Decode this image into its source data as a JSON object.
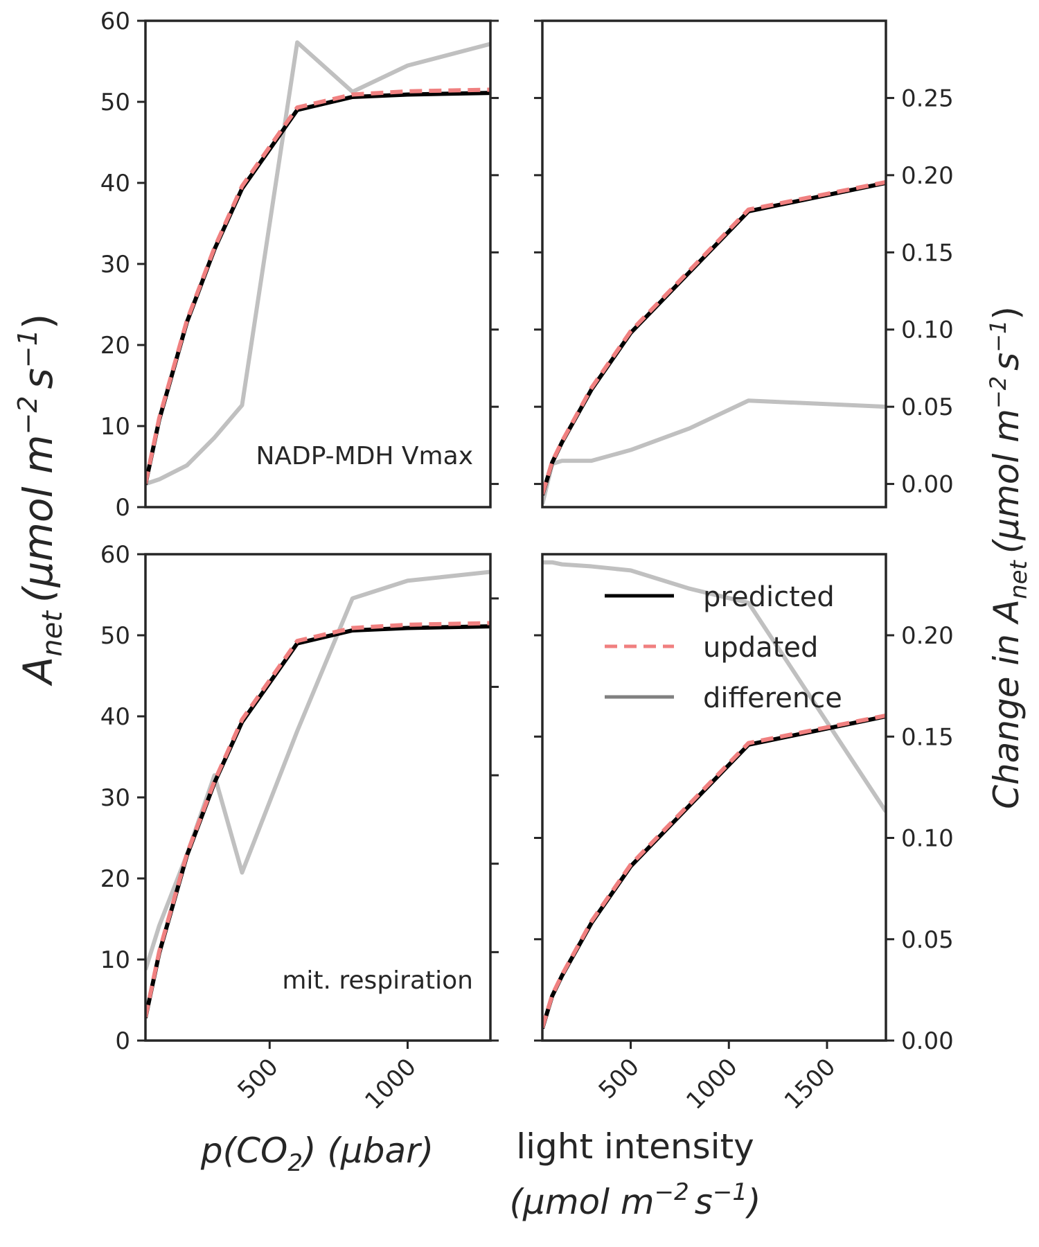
{
  "colors": {
    "predicted": "#000000",
    "updated": "#f08080",
    "difference": "#c0c0c0",
    "axis": "#262626"
  },
  "labels": {
    "y_left_main": "A",
    "y_left_sub": "net",
    "y_left_units": "(μmol m",
    "y_left_exp1": "−2",
    "y_left_mid": "s",
    "y_left_exp2": "−1",
    "y_left_close": ")",
    "y_right_main": "Change in A",
    "y_right_sub": "net",
    "y_right_units": "(μmol m",
    "y_right_exp1": "−2",
    "y_right_mid": "s",
    "y_right_exp2": "−1",
    "y_right_close": ")",
    "x_left_a": "p(CO",
    "x_left_sub": "2",
    "x_left_b": ") (μbar)",
    "x_right_line1": "light intensity",
    "x_right_line2_a": "(μmol m",
    "x_right_exp1": "−2",
    "x_right_mid": "s",
    "x_right_exp2": "−1",
    "x_right_close": ")"
  },
  "legend": {
    "items": [
      "predicted",
      "updated",
      "difference"
    ],
    "placement": "upper-center of bottom-right panel"
  },
  "chart_data": [
    {
      "id": "top-left",
      "type": "line",
      "annotation": "NADP-MDH Vmax",
      "xlabel": "p(CO2) (μbar)",
      "ylabel": "Anet (μmol m−2 s−1)",
      "xlim": [
        50,
        1300
      ],
      "ylim": [
        0,
        60
      ],
      "yticks": [
        0,
        10,
        20,
        30,
        40,
        50,
        60
      ],
      "x": [
        50,
        100,
        200,
        300,
        400,
        600,
        800,
        1000,
        1300
      ],
      "series": [
        {
          "name": "predicted",
          "values": [
            2.8,
            10.8,
            22.8,
            31.8,
            39.3,
            49.0,
            50.6,
            50.9,
            51.1
          ]
        },
        {
          "name": "updated",
          "values": [
            2.9,
            11.0,
            23.0,
            32.0,
            39.6,
            49.3,
            50.9,
            51.3,
            51.5
          ]
        }
      ],
      "difference": {
        "ylim": [
          -0.015,
          0.3
        ],
        "values": [
          0.0,
          0.003,
          0.012,
          0.03,
          0.051,
          0.286,
          0.254,
          0.271,
          0.285
        ]
      }
    },
    {
      "id": "top-right",
      "type": "line",
      "xlim": [
        50,
        1800
      ],
      "ylim": [
        0,
        60
      ],
      "x": [
        50,
        100,
        150,
        300,
        500,
        800,
        1100,
        1800
      ],
      "series": [
        {
          "name": "predicted",
          "values": [
            1.5,
            5.5,
            8.0,
            14.5,
            21.5,
            29.0,
            36.5,
            40.0
          ]
        },
        {
          "name": "updated",
          "values": [
            1.6,
            5.6,
            8.1,
            14.7,
            21.7,
            29.2,
            36.7,
            40.1
          ]
        }
      ],
      "difference": {
        "ylim": [
          -0.015,
          0.3
        ],
        "yticks": [
          "0.00",
          "0.05",
          "0.10",
          "0.15",
          "0.20",
          "0.25"
        ],
        "values": [
          -0.013,
          0.013,
          0.015,
          0.015,
          0.022,
          0.036,
          0.054,
          0.05
        ]
      }
    },
    {
      "id": "bottom-left",
      "type": "line",
      "annotation": "mit. respiration",
      "xlim": [
        50,
        1300
      ],
      "ylim": [
        0,
        60
      ],
      "yticks": [
        0,
        10,
        20,
        30,
        40,
        50,
        60
      ],
      "xticks": [
        "500",
        "1000"
      ],
      "x": [
        50,
        100,
        200,
        300,
        400,
        600,
        800,
        1000,
        1300
      ],
      "series": [
        {
          "name": "predicted",
          "values": [
            2.8,
            10.8,
            22.8,
            31.8,
            39.3,
            49.0,
            50.6,
            50.9,
            51.1
          ]
        },
        {
          "name": "updated",
          "values": [
            2.9,
            11.0,
            23.0,
            32.0,
            39.6,
            49.3,
            50.9,
            51.3,
            51.5
          ]
        }
      ],
      "difference": {
        "ylim": [
          0,
          0.55
        ],
        "values": [
          0.08,
          0.13,
          0.21,
          0.3,
          0.19,
          0.35,
          0.5,
          0.52,
          0.53
        ]
      }
    },
    {
      "id": "bottom-right",
      "type": "line",
      "xlim": [
        50,
        1800
      ],
      "ylim": [
        0,
        60
      ],
      "xticks": [
        "500",
        "1000",
        "1500"
      ],
      "x": [
        50,
        100,
        150,
        300,
        500,
        800,
        1100,
        1800
      ],
      "series": [
        {
          "name": "predicted",
          "values": [
            1.5,
            5.5,
            8.0,
            14.5,
            21.5,
            29.0,
            36.5,
            40.0
          ]
        },
        {
          "name": "updated",
          "values": [
            1.6,
            5.6,
            8.1,
            14.7,
            21.7,
            29.2,
            36.7,
            40.1
          ]
        }
      ],
      "difference": {
        "ylim": [
          0,
          0.24
        ],
        "yticks": [
          "0.00",
          "0.05",
          "0.10",
          "0.15",
          "0.20"
        ],
        "values": [
          0.236,
          0.236,
          0.235,
          0.234,
          0.232,
          0.223,
          0.216,
          0.113
        ]
      }
    }
  ]
}
